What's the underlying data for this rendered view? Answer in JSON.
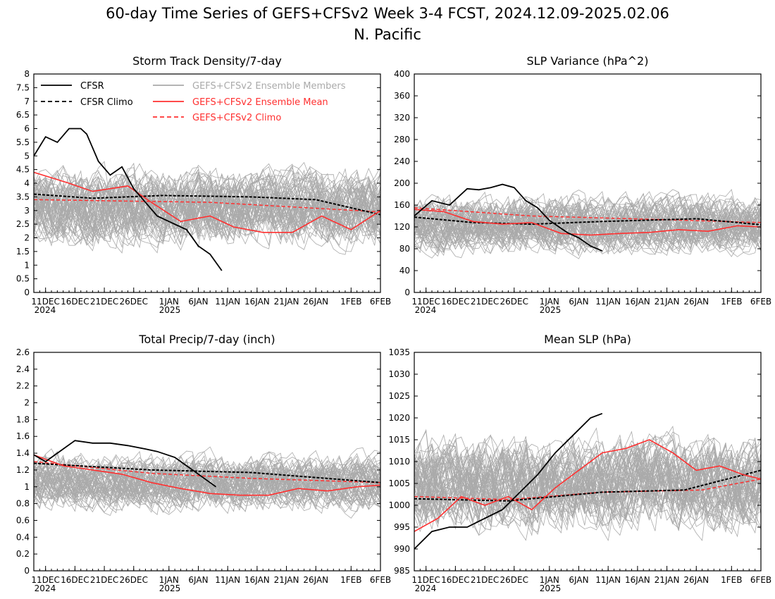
{
  "figure": {
    "title_line1": "60-day Time Series of GEFS+CFSv2 Week 3-4 FCST, 2024.12.09-2025.02.06",
    "title_line2": "N. Pacific"
  },
  "colors": {
    "cfsr": "#000000",
    "members": "#aaaaaa",
    "ens_mean": "#ff3030",
    "gefs_climo": "#ff3030"
  },
  "legend": {
    "cfsr": "CFSR",
    "cfsr_climo": "CFSR Climo",
    "members": "GEFS+CFSv2 Ensemble Members",
    "ens_mean": "GEFS+CFSv2 Ensemble Mean",
    "gefs_climo": "GEFS+CFSv2 Climo"
  },
  "x_axis": {
    "start_date": "2024-12-09",
    "end_date": "2025-02-06",
    "tick_labels": [
      "11DEC",
      "16DEC",
      "21DEC",
      "26DEC",
      "1JAN",
      "6JAN",
      "11JAN",
      "16JAN",
      "21JAN",
      "26JAN",
      "1FEB",
      "6FEB"
    ],
    "year_labels": [
      "2024",
      "2025"
    ]
  },
  "chart_data": [
    {
      "type": "line",
      "title": "Storm Track Density/7-day",
      "ylim": [
        0,
        8
      ],
      "yticks": [
        "0",
        "0.5",
        "1",
        "1.5",
        "2",
        "2.5",
        "3",
        "3.5",
        "4",
        "4.5",
        "5",
        "5.5",
        "6",
        "6.5",
        "7",
        "7.5",
        "8"
      ],
      "has_legend": true,
      "cfsr_dates": [
        "2024-12-09",
        "2024-12-11",
        "2024-12-13",
        "2024-12-15",
        "2024-12-17",
        "2024-12-18",
        "2024-12-20",
        "2024-12-22",
        "2024-12-24",
        "2024-12-26",
        "2024-12-28",
        "2024-12-30",
        "2025-01-01",
        "2025-01-04",
        "2025-01-06",
        "2025-01-08",
        "2025-01-10"
      ],
      "cfsr": [
        5.0,
        5.7,
        5.5,
        6.0,
        6.0,
        5.8,
        4.8,
        4.3,
        4.6,
        3.8,
        3.3,
        2.8,
        2.6,
        2.3,
        1.7,
        1.4,
        0.8
      ],
      "cfsr_climo": {
        "dates": [
          "2024-12-09",
          "2024-12-19",
          "2024-12-31",
          "2025-01-15",
          "2025-01-26",
          "2025-02-06"
        ],
        "values": [
          3.6,
          3.45,
          3.55,
          3.5,
          3.4,
          2.85
        ]
      },
      "gefs_climo": {
        "dates": [
          "2024-12-09",
          "2025-01-08",
          "2025-02-06"
        ],
        "values": [
          3.4,
          3.3,
          2.95
        ]
      },
      "ens_mean": {
        "dates": [
          "2024-12-09",
          "2024-12-15",
          "2024-12-19",
          "2024-12-25",
          "2024-12-29",
          "2025-01-03",
          "2025-01-08",
          "2025-01-12",
          "2025-01-17",
          "2025-01-22",
          "2025-01-27",
          "2025-02-01",
          "2025-02-06"
        ],
        "values": [
          4.4,
          4.0,
          3.7,
          3.9,
          3.3,
          2.6,
          2.8,
          2.4,
          2.2,
          2.2,
          2.8,
          2.3,
          3.0
        ]
      },
      "members_band": {
        "center": 3.1,
        "spread": 1.2,
        "min": 0,
        "max": 7.5
      }
    },
    {
      "type": "line",
      "title": "SLP Variance (hPa^2)",
      "ylim": [
        0,
        400
      ],
      "yticks": [
        "0",
        "40",
        "80",
        "120",
        "160",
        "200",
        "240",
        "280",
        "320",
        "360",
        "400"
      ],
      "has_legend": false,
      "cfsr_dates": [
        "2024-12-09",
        "2024-12-12",
        "2024-12-15",
        "2024-12-18",
        "2024-12-20",
        "2024-12-22",
        "2024-12-24",
        "2024-12-26",
        "2024-12-28",
        "2024-12-30",
        "2025-01-01",
        "2025-01-04",
        "2025-01-06",
        "2025-01-08",
        "2025-01-10"
      ],
      "cfsr": [
        140,
        168,
        160,
        190,
        188,
        192,
        198,
        192,
        168,
        155,
        132,
        110,
        100,
        85,
        76
      ],
      "cfsr_climo": {
        "dates": [
          "2024-12-09",
          "2024-12-19",
          "2024-12-29",
          "2025-01-10",
          "2025-01-26",
          "2025-02-06"
        ],
        "values": [
          138,
          128,
          125,
          130,
          135,
          124
        ]
      },
      "gefs_climo": {
        "dates": [
          "2024-12-09",
          "2024-12-29",
          "2025-01-15",
          "2025-02-06"
        ],
        "values": [
          155,
          140,
          135,
          128
        ]
      },
      "ens_mean": {
        "dates": [
          "2024-12-09",
          "2024-12-14",
          "2024-12-19",
          "2024-12-24",
          "2024-12-29",
          "2025-01-03",
          "2025-01-08",
          "2025-01-13",
          "2025-01-18",
          "2025-01-23",
          "2025-01-28",
          "2025-02-02",
          "2025-02-06"
        ],
        "values": [
          152,
          148,
          130,
          125,
          128,
          108,
          105,
          108,
          110,
          115,
          112,
          122,
          120
        ]
      },
      "members_band": {
        "center": 125,
        "spread": 45,
        "min": 30,
        "max": 330
      }
    },
    {
      "type": "line",
      "title": "Total Precip/7-day (inch)",
      "ylim": [
        0,
        2.6
      ],
      "yticks": [
        "0",
        "0.2",
        "0.4",
        "0.6",
        "0.8",
        "1",
        "1.2",
        "1.4",
        "1.6",
        "1.8",
        "2",
        "2.2",
        "2.4",
        "2.6"
      ],
      "has_legend": false,
      "cfsr_dates": [
        "2024-12-09",
        "2024-12-11",
        "2024-12-14",
        "2024-12-16",
        "2024-12-19",
        "2024-12-22",
        "2024-12-25",
        "2024-12-28",
        "2024-12-30",
        "2025-01-02",
        "2025-01-05",
        "2025-01-07",
        "2025-01-09"
      ],
      "cfsr": [
        1.38,
        1.3,
        1.45,
        1.55,
        1.52,
        1.52,
        1.49,
        1.45,
        1.42,
        1.35,
        1.2,
        1.1,
        1.0
      ],
      "cfsr_climo": {
        "dates": [
          "2024-12-09",
          "2024-12-29",
          "2025-01-15",
          "2025-02-06"
        ],
        "values": [
          1.28,
          1.2,
          1.17,
          1.05
        ]
      },
      "gefs_climo": {
        "dates": [
          "2024-12-09",
          "2024-12-29",
          "2025-01-15",
          "2025-02-06"
        ],
        "values": [
          1.3,
          1.16,
          1.1,
          1.05
        ]
      },
      "ens_mean": {
        "dates": [
          "2024-12-09",
          "2024-12-14",
          "2024-12-19",
          "2024-12-24",
          "2024-12-29",
          "2025-01-03",
          "2025-01-08",
          "2025-01-13",
          "2025-01-18",
          "2025-01-23",
          "2025-01-28",
          "2025-02-02",
          "2025-02-06"
        ],
        "values": [
          1.38,
          1.25,
          1.2,
          1.15,
          1.05,
          0.98,
          0.92,
          0.9,
          0.9,
          0.98,
          0.95,
          1.0,
          1.02
        ]
      },
      "members_band": {
        "center": 1.05,
        "spread": 0.28,
        "min": 0.3,
        "max": 1.9
      }
    },
    {
      "type": "line",
      "title": "Mean SLP (hPa)",
      "ylim": [
        985,
        1035
      ],
      "yticks": [
        "985",
        "990",
        "995",
        "1000",
        "1005",
        "1010",
        "1015",
        "1020",
        "1025",
        "1030",
        "1035"
      ],
      "has_legend": false,
      "cfsr_dates": [
        "2024-12-09",
        "2024-12-12",
        "2024-12-15",
        "2024-12-18",
        "2024-12-21",
        "2024-12-24",
        "2024-12-27",
        "2024-12-30",
        "2025-01-02",
        "2025-01-05",
        "2025-01-08",
        "2025-01-10"
      ],
      "cfsr": [
        990,
        994,
        995,
        995,
        997,
        999,
        1003,
        1007,
        1012,
        1016,
        1020,
        1021
      ],
      "cfsr_climo": {
        "dates": [
          "2024-12-09",
          "2024-12-25",
          "2025-01-10",
          "2025-01-24",
          "2025-02-06"
        ],
        "values": [
          1001.5,
          1001,
          1003,
          1003.5,
          1008
        ]
      },
      "gefs_climo": {
        "dates": [
          "2024-12-09",
          "2024-12-25",
          "2025-01-10",
          "2025-01-27",
          "2025-02-06"
        ],
        "values": [
          1002,
          1001.3,
          1003,
          1003.5,
          1006
        ]
      },
      "ens_mean": {
        "dates": [
          "2024-12-09",
          "2024-12-13",
          "2024-12-17",
          "2024-12-21",
          "2024-12-25",
          "2024-12-29",
          "2025-01-02",
          "2025-01-06",
          "2025-01-10",
          "2025-01-14",
          "2025-01-18",
          "2025-01-22",
          "2025-01-26",
          "2025-01-30",
          "2025-02-03",
          "2025-02-06"
        ],
        "values": [
          994,
          997,
          1002,
          1000,
          1002,
          999,
          1004,
          1008,
          1012,
          1013,
          1015,
          1012,
          1008,
          1009,
          1007,
          1006
        ]
      },
      "members_band": {
        "center": 1005,
        "spread": 9,
        "min": 985,
        "max": 1031
      }
    }
  ]
}
